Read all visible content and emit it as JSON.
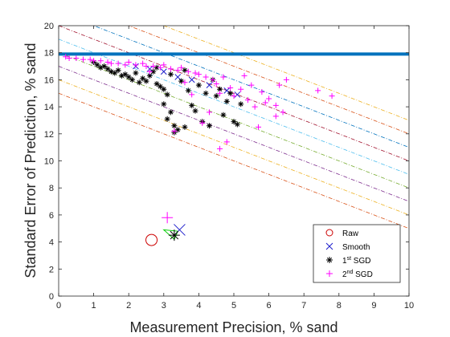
{
  "chart_data": {
    "type": "scatter",
    "xlabel": "Measurement Precision, % sand",
    "ylabel": "Standard Error of Prediction, % sand",
    "xlim": [
      0,
      10
    ],
    "ylim": [
      0,
      20
    ],
    "x_ticks": [
      "0",
      "1",
      "2",
      "3",
      "4",
      "5",
      "6",
      "7",
      "8",
      "9",
      "10"
    ],
    "y_ticks": [
      "0",
      "2",
      "4",
      "6",
      "8",
      "10",
      "12",
      "14",
      "16",
      "18",
      "20"
    ],
    "grid": false,
    "legend_position": "bottom-right",
    "reference_line": {
      "y": 17.9,
      "color": "#0072bd"
    },
    "contour_lines": [
      {
        "y0": 15,
        "slope": -1,
        "color": "#d95319"
      },
      {
        "y0": 16,
        "slope": -1,
        "color": "#edb120"
      },
      {
        "y0": 17,
        "slope": -1,
        "color": "#7e2f8e"
      },
      {
        "y0": 18,
        "slope": -1,
        "color": "#77ac30"
      },
      {
        "y0": 19,
        "slope": -1,
        "color": "#4dbeee"
      },
      {
        "y0": 20,
        "slope": -1,
        "color": "#a2142f"
      },
      {
        "y0": 21,
        "slope": -1,
        "color": "#0072bd"
      },
      {
        "y0": 22,
        "slope": -1,
        "color": "#d95319"
      },
      {
        "y0": 23,
        "slope": -1,
        "color": "#edb120"
      }
    ],
    "triangle": {
      "color": "#00cc00",
      "points": [
        [
          3.0,
          4.9
        ],
        [
          3.3,
          4.2
        ],
        [
          3.4,
          4.8
        ]
      ]
    },
    "series": [
      {
        "name": "Raw",
        "marker": "circle",
        "color": "#cc0000",
        "points": [
          [
            2.65,
            4.15
          ]
        ]
      },
      {
        "name": "Smooth",
        "marker": "x",
        "color": "#1f1fcc",
        "points": [
          [
            3.45,
            4.9
          ],
          [
            2.2,
            17.0
          ],
          [
            2.6,
            16.8
          ],
          [
            3.0,
            16.6
          ],
          [
            3.4,
            16.2
          ],
          [
            3.8,
            16.0
          ],
          [
            4.3,
            15.6
          ],
          [
            4.8,
            15.2
          ],
          [
            5.1,
            14.9
          ]
        ]
      },
      {
        "name": "1st SGD",
        "legend_base": "1",
        "legend_sup": "st",
        "legend_tail": " SGD",
        "marker": "asterisk",
        "color": "#000000",
        "points": [
          [
            3.3,
            4.5
          ],
          [
            1.0,
            17.3
          ],
          [
            1.1,
            17.1
          ],
          [
            1.2,
            16.9
          ],
          [
            1.3,
            17.0
          ],
          [
            1.4,
            16.8
          ],
          [
            1.5,
            16.6
          ],
          [
            1.6,
            16.5
          ],
          [
            1.7,
            16.7
          ],
          [
            1.8,
            16.3
          ],
          [
            1.9,
            16.4
          ],
          [
            2.0,
            16.2
          ],
          [
            2.1,
            16.0
          ],
          [
            2.2,
            16.5
          ],
          [
            2.3,
            15.8
          ],
          [
            2.4,
            16.1
          ],
          [
            2.5,
            15.9
          ],
          [
            2.6,
            16.3
          ],
          [
            2.7,
            16.6
          ],
          [
            2.8,
            15.7
          ],
          [
            2.9,
            15.5
          ],
          [
            3.0,
            15.3
          ],
          [
            3.1,
            14.9
          ],
          [
            3.0,
            14.2
          ],
          [
            3.2,
            13.6
          ],
          [
            3.1,
            13.1
          ],
          [
            3.3,
            12.6
          ],
          [
            3.4,
            12.3
          ],
          [
            3.3,
            12.1
          ],
          [
            3.6,
            12.5
          ],
          [
            3.7,
            15.2
          ],
          [
            3.8,
            14.1
          ],
          [
            3.9,
            13.7
          ],
          [
            4.1,
            12.9
          ],
          [
            4.3,
            12.6
          ],
          [
            4.2,
            15.0
          ],
          [
            4.5,
            14.8
          ],
          [
            4.7,
            13.4
          ],
          [
            4.8,
            14.4
          ],
          [
            5.0,
            12.9
          ],
          [
            5.1,
            12.7
          ],
          [
            4.4,
            16.0
          ],
          [
            3.5,
            15.9
          ],
          [
            3.2,
            16.4
          ],
          [
            4.0,
            15.6
          ],
          [
            4.6,
            15.3
          ],
          [
            5.2,
            14.2
          ],
          [
            3.6,
            16.7
          ],
          [
            2.8,
            16.9
          ],
          [
            4.9,
            15.0
          ]
        ]
      },
      {
        "name": "2nd SGD",
        "legend_base": "2",
        "legend_sup": "nd",
        "legend_tail": " SGD",
        "marker": "plus",
        "color": "#ff00ff",
        "points": [
          [
            3.1,
            5.8
          ],
          [
            0.2,
            17.7
          ],
          [
            0.3,
            17.6
          ],
          [
            0.5,
            17.6
          ],
          [
            0.7,
            17.5
          ],
          [
            0.9,
            17.5
          ],
          [
            1.0,
            17.4
          ],
          [
            1.2,
            17.4
          ],
          [
            1.4,
            17.3
          ],
          [
            1.5,
            17.2
          ],
          [
            1.7,
            17.2
          ],
          [
            1.9,
            17.1
          ],
          [
            2.0,
            17.3
          ],
          [
            2.2,
            17.1
          ],
          [
            2.4,
            17.2
          ],
          [
            2.5,
            17.0
          ],
          [
            2.7,
            17.0
          ],
          [
            2.9,
            16.9
          ],
          [
            3.0,
            17.1
          ],
          [
            3.2,
            16.8
          ],
          [
            3.4,
            16.7
          ],
          [
            3.5,
            16.9
          ],
          [
            3.7,
            16.6
          ],
          [
            3.9,
            16.5
          ],
          [
            4.0,
            16.4
          ],
          [
            4.2,
            16.2
          ],
          [
            4.4,
            16.0
          ],
          [
            4.5,
            15.7
          ],
          [
            4.6,
            15.0
          ],
          [
            4.7,
            16.2
          ],
          [
            4.9,
            15.4
          ],
          [
            5.0,
            14.8
          ],
          [
            5.2,
            15.3
          ],
          [
            5.4,
            14.5
          ],
          [
            5.5,
            15.6
          ],
          [
            5.6,
            14.0
          ],
          [
            5.8,
            15.1
          ],
          [
            6.0,
            14.6
          ],
          [
            6.2,
            14.1
          ],
          [
            6.3,
            15.6
          ],
          [
            6.5,
            16.0
          ],
          [
            6.4,
            13.6
          ],
          [
            7.4,
            15.2
          ],
          [
            7.8,
            14.8
          ],
          [
            4.1,
            12.8
          ],
          [
            3.3,
            12.2
          ],
          [
            4.8,
            11.4
          ],
          [
            4.6,
            10.9
          ],
          [
            5.7,
            12.5
          ],
          [
            4.3,
            13.6
          ],
          [
            3.8,
            14.9
          ],
          [
            2.6,
            16.6
          ],
          [
            3.6,
            15.8
          ],
          [
            5.3,
            16.3
          ],
          [
            6.2,
            13.3
          ],
          [
            5.9,
            14.3
          ]
        ]
      }
    ]
  }
}
